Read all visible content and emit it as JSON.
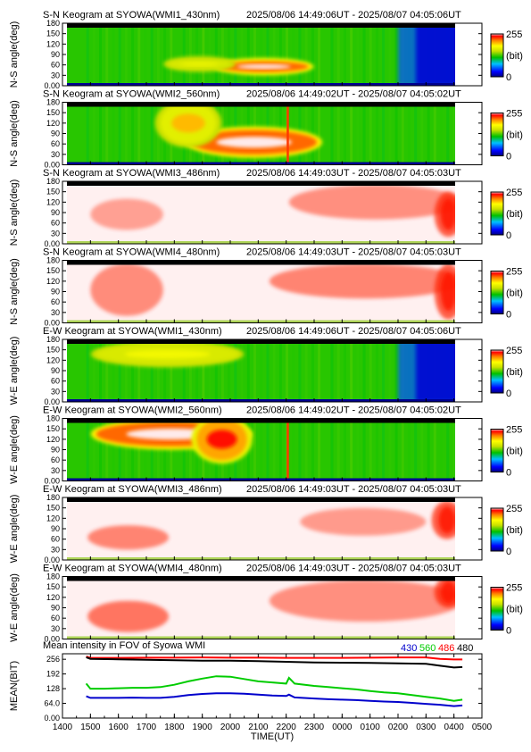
{
  "chart_data": {
    "type": "heatmap",
    "time_axis": {
      "label": "TIME(UT)",
      "range_hours": [
        14,
        29
      ],
      "ticks": [
        "1400",
        "1500",
        "1600",
        "1700",
        "1800",
        "1900",
        "2000",
        "2100",
        "2200",
        "2300",
        "0000",
        "0100",
        "0200",
        "0300",
        "0400",
        "0500"
      ]
    },
    "colorbar": {
      "max_label": "255",
      "min_label": "0",
      "unit_label": "(bit)",
      "range": [
        0,
        255
      ]
    },
    "panels": [
      {
        "title": "S-N Keogram at SYOWA(WMI1_430nm)",
        "period": "2025/08/06 14:49:06UT - 2025/08/07 04:05:06UT",
        "ylabel": "N-S angle(deg)",
        "yticks": [
          "180",
          "150",
          "120",
          "90",
          "60",
          "30",
          "0.00"
        ],
        "ylim": [
          0,
          180
        ],
        "background": "green",
        "features": [
          {
            "kind": "blob",
            "t0": 19.6,
            "t1": 22.8,
            "a0": 40,
            "a1": 70,
            "peak": 255
          },
          {
            "kind": "blob",
            "t0": 17.8,
            "t1": 20.0,
            "a0": 50,
            "a1": 75,
            "peak": 170
          },
          {
            "kind": "gradient",
            "t0": 26.0,
            "t1": 28.3,
            "a0": 0,
            "a1": 180,
            "level": 20
          }
        ]
      },
      {
        "title": "S-N Keogram at SYOWA(WMI2_560nm)",
        "period": "2025/08/06 14:49:02UT - 2025/08/07 04:05:02UT",
        "ylabel": "N-S angle(deg)",
        "yticks": [
          "180",
          "150",
          "120",
          "90",
          "60",
          "30",
          "0.00"
        ],
        "ylim": [
          0,
          180
        ],
        "background": "green",
        "features": [
          {
            "kind": "blob",
            "t0": 18.6,
            "t1": 23.1,
            "a0": 30,
            "a1": 100,
            "peak": 255
          },
          {
            "kind": "blob",
            "t0": 17.5,
            "t1": 19.5,
            "a0": 60,
            "a1": 180,
            "peak": 200
          },
          {
            "kind": "line",
            "t0": 22.05,
            "level": 230
          }
        ]
      },
      {
        "title": "S-N Keogram at SYOWA(WMI3_486nm)",
        "period": "2025/08/06 14:49:03UT - 2025/08/07 04:05:03UT",
        "ylabel": "N-S angle(deg)",
        "yticks": [
          "180",
          "150",
          "120",
          "90",
          "60",
          "30",
          "0.00"
        ],
        "ylim": [
          0,
          180
        ],
        "background": "pale",
        "features": [
          {
            "kind": "blob",
            "t0": 15.0,
            "t1": 17.6,
            "a0": 40,
            "a1": 130,
            "peak": 140
          },
          {
            "kind": "blob",
            "t0": 22.1,
            "t1": 28.3,
            "a0": 70,
            "a1": 170,
            "peak": 170
          },
          {
            "kind": "blob",
            "t0": 27.3,
            "t1": 28.3,
            "a0": 20,
            "a1": 150,
            "peak": 255
          }
        ]
      },
      {
        "title": "S-N Keogram at SYOWA(WMI4_480nm)",
        "period": "2025/08/06 14:49:03UT - 2025/08/07 04:05:03UT",
        "ylabel": "N-S angle(deg)",
        "yticks": [
          "180",
          "150",
          "120",
          "90",
          "60",
          "30",
          "0.00"
        ],
        "ylim": [
          0,
          180
        ],
        "background": "pale",
        "features": [
          {
            "kind": "blob",
            "t0": 15.0,
            "t1": 17.6,
            "a0": 20,
            "a1": 170,
            "peak": 175
          },
          {
            "kind": "blob",
            "t0": 21.4,
            "t1": 28.3,
            "a0": 70,
            "a1": 170,
            "peak": 190
          },
          {
            "kind": "blob",
            "t0": 27.3,
            "t1": 28.3,
            "a0": 10,
            "a1": 170,
            "peak": 255
          }
        ]
      },
      {
        "title": "E-W Keogram at SYOWA(WMI1_430nm)",
        "period": "2025/08/06 14:49:06UT - 2025/08/07 04:05:06UT",
        "ylabel": "W-E angle(deg)",
        "yticks": [
          "180",
          "150",
          "120",
          "90",
          "60",
          "30",
          "0.00"
        ],
        "ylim": [
          0,
          180
        ],
        "background": "green",
        "features": [
          {
            "kind": "blob",
            "t0": 16.2,
            "t1": 19.2,
            "a0": 130,
            "a1": 150,
            "peak": 255
          },
          {
            "kind": "blob",
            "t0": 15.2,
            "t1": 20.3,
            "a0": 110,
            "a1": 165,
            "peak": 175
          },
          {
            "kind": "gradient",
            "t0": 26.0,
            "t1": 28.3,
            "a0": 0,
            "a1": 180,
            "level": 20
          }
        ]
      },
      {
        "title": "E-W Keogram at SYOWA(WMI2_560nm)",
        "period": "2025/08/06 14:49:02UT - 2025/08/07 04:05:02UT",
        "ylabel": "W-E angle(deg)",
        "yticks": [
          "180",
          "150",
          "120",
          "90",
          "60",
          "30",
          "0.00"
        ],
        "ylim": [
          0,
          180
        ],
        "background": "green",
        "features": [
          {
            "kind": "blob",
            "t0": 15.2,
            "t1": 20.6,
            "a0": 100,
            "a1": 170,
            "peak": 255
          },
          {
            "kind": "blob",
            "t0": 18.8,
            "t1": 20.6,
            "a0": 60,
            "a1": 180,
            "peak": 240
          },
          {
            "kind": "line",
            "t0": 22.05,
            "level": 230
          }
        ]
      },
      {
        "title": "E-W Keogram at SYOWA(WMI3_486nm)",
        "period": "2025/08/06 14:49:03UT - 2025/08/07 04:05:03UT",
        "ylabel": "W-E angle(deg)",
        "yticks": [
          "180",
          "150",
          "120",
          "90",
          "60",
          "30",
          "0.00"
        ],
        "ylim": [
          0,
          180
        ],
        "background": "pale",
        "features": [
          {
            "kind": "blob",
            "t0": 14.9,
            "t1": 17.8,
            "a0": 30,
            "a1": 100,
            "peak": 190
          },
          {
            "kind": "blob",
            "t0": 22.5,
            "t1": 27.0,
            "a0": 70,
            "a1": 150,
            "peak": 150
          },
          {
            "kind": "blob",
            "t0": 27.2,
            "t1": 28.3,
            "a0": 60,
            "a1": 170,
            "peak": 255
          }
        ]
      },
      {
        "title": "E-W Keogram at SYOWA(WMI4_480nm)",
        "period": "2025/08/06 14:49:03UT - 2025/08/07 04:05:03UT",
        "ylabel": "W-E angle(deg)",
        "yticks": [
          "180",
          "150",
          "120",
          "90",
          "60",
          "30",
          "0.00"
        ],
        "ylim": [
          0,
          180
        ],
        "background": "pale",
        "features": [
          {
            "kind": "blob",
            "t0": 14.9,
            "t1": 17.8,
            "a0": 20,
            "a1": 110,
            "peak": 215
          },
          {
            "kind": "blob",
            "t0": 21.4,
            "t1": 28.3,
            "a0": 50,
            "a1": 170,
            "peak": 170
          },
          {
            "kind": "blob",
            "t0": 27.3,
            "t1": 28.3,
            "a0": 90,
            "a1": 180,
            "peak": 255
          }
        ]
      }
    ],
    "line_panel": {
      "type": "line",
      "title": "Mean intensity in FOV of Syowa WMI",
      "ylabel": "MEAN(BIT)",
      "yticks": [
        {
          "value": 256,
          "label": "256"
        },
        {
          "value": 192,
          "label": "192"
        },
        {
          "value": 128,
          "label": "128"
        },
        {
          "value": 64,
          "label": "64.0"
        },
        {
          "value": 0,
          "label": "0.00"
        }
      ],
      "ylim": [
        0,
        280
      ],
      "x_range_hours": [
        14,
        29
      ],
      "series": [
        {
          "name": "430",
          "color": "#0000cc",
          "x": [
            14.85,
            15.0,
            15.5,
            16.0,
            16.5,
            17.0,
            17.5,
            18.0,
            18.5,
            19.0,
            19.5,
            20.0,
            20.5,
            21.0,
            21.5,
            22.0,
            22.1,
            22.3,
            23.0,
            23.5,
            24.0,
            24.5,
            25.0,
            25.5,
            26.0,
            26.5,
            27.0,
            27.5,
            28.0,
            28.3
          ],
          "y": [
            95,
            88,
            88,
            88,
            89,
            88,
            88,
            92,
            100,
            105,
            108,
            108,
            106,
            102,
            98,
            96,
            102,
            90,
            85,
            82,
            80,
            78,
            75,
            72,
            70,
            66,
            62,
            58,
            52,
            55
          ]
        },
        {
          "name": "560",
          "color": "#00cc00",
          "x": [
            14.85,
            15.0,
            15.5,
            16.0,
            16.5,
            17.0,
            17.5,
            18.0,
            18.5,
            19.0,
            19.5,
            20.0,
            20.5,
            21.0,
            21.5,
            22.0,
            22.1,
            22.3,
            23.0,
            23.5,
            24.0,
            24.5,
            25.0,
            25.5,
            26.0,
            26.5,
            27.0,
            27.5,
            28.0,
            28.3
          ],
          "y": [
            150,
            128,
            128,
            130,
            132,
            132,
            135,
            145,
            160,
            172,
            182,
            180,
            170,
            160,
            155,
            150,
            175,
            150,
            140,
            135,
            130,
            125,
            118,
            112,
            108,
            100,
            92,
            85,
            75,
            80
          ]
        },
        {
          "name": "486",
          "color": "#ff0000",
          "x": [
            14.85,
            15.0,
            16.0,
            17.0,
            18.0,
            19.0,
            20.0,
            21.0,
            22.0,
            23.0,
            24.0,
            25.0,
            26.0,
            27.0,
            27.5,
            28.0,
            28.3
          ],
          "y": [
            268,
            262,
            262,
            263,
            263,
            264,
            263,
            263,
            262,
            262,
            262,
            263,
            264,
            264,
            258,
            255,
            255
          ]
        },
        {
          "name": "480",
          "color": "#000000",
          "x": [
            14.85,
            15.0,
            16.0,
            17.0,
            18.0,
            19.0,
            20.0,
            21.0,
            22.0,
            23.0,
            24.0,
            25.0,
            26.0,
            27.0,
            27.5,
            28.0,
            28.3
          ],
          "y": [
            265,
            258,
            256,
            254,
            252,
            250,
            250,
            248,
            245,
            242,
            241,
            240,
            238,
            236,
            228,
            220,
            222
          ]
        }
      ]
    }
  }
}
